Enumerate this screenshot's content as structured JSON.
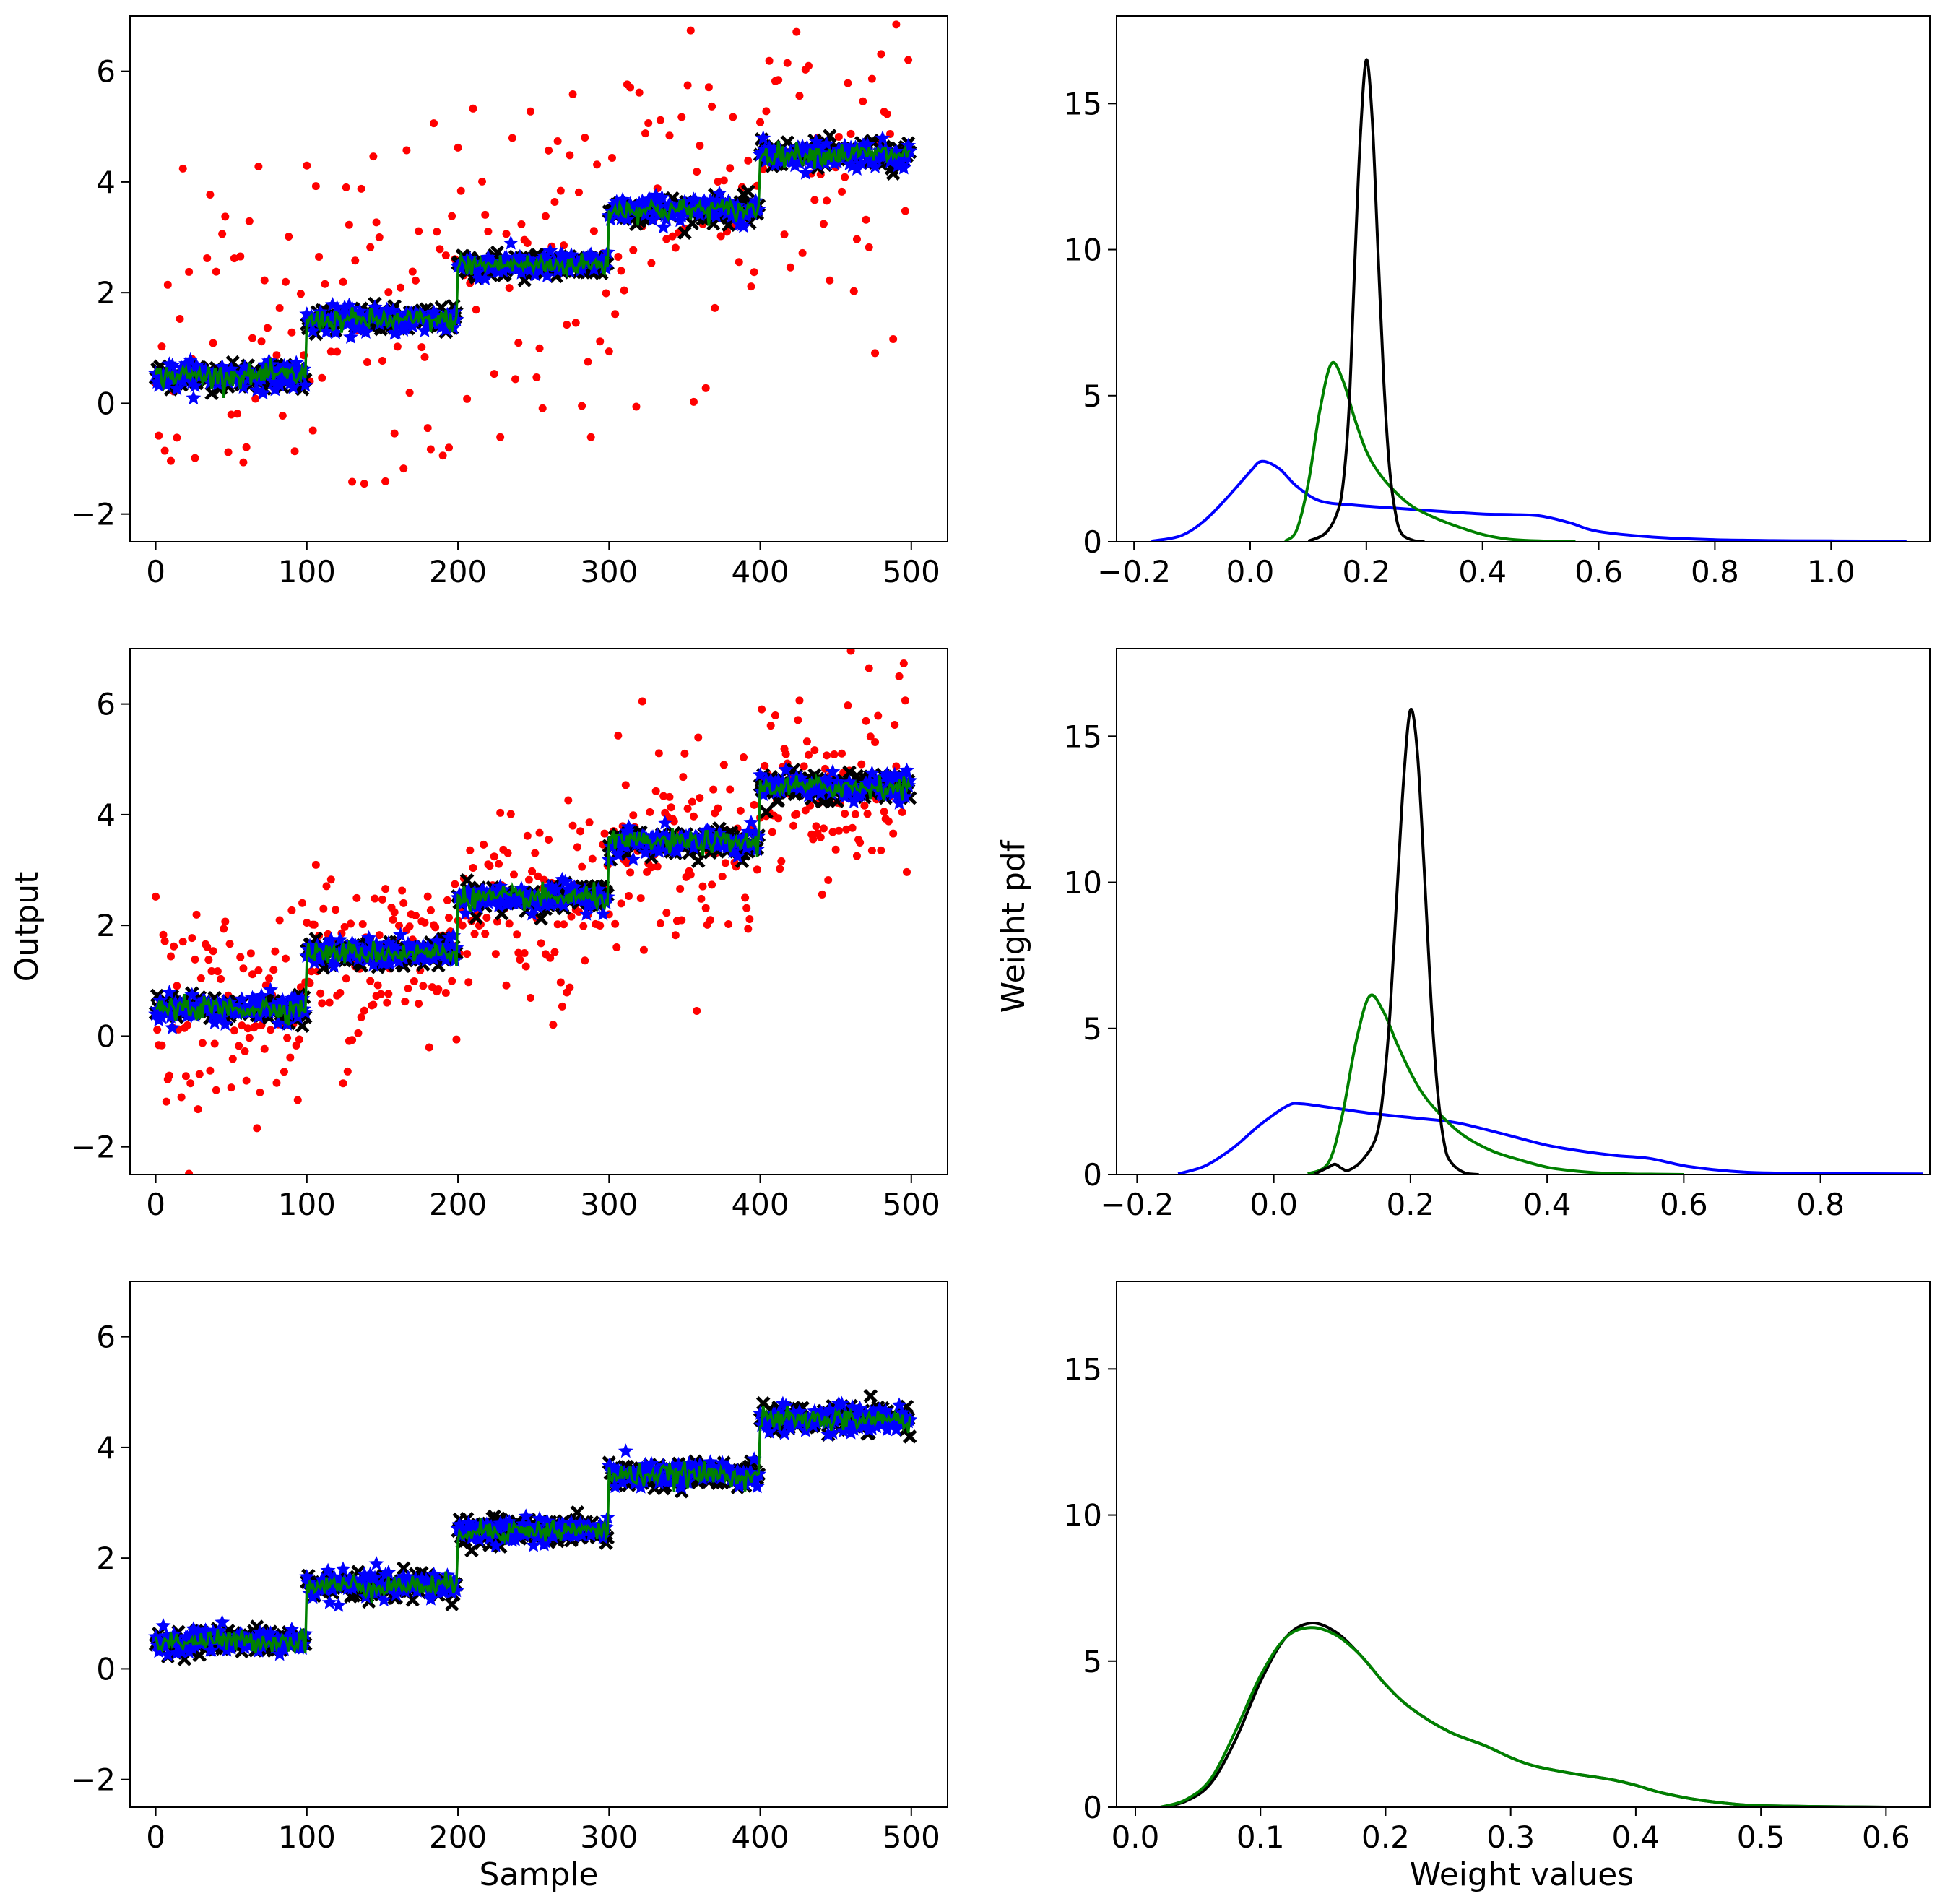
{
  "figure": {
    "left_ylabel": "Output",
    "right_ylabel": "Weight pdf",
    "left_xlabel": "Sample",
    "right_xlabel": "Weight values"
  },
  "colors": {
    "observed": "#ff0000",
    "blue_series": "#0000ff",
    "black_series": "#000000",
    "green_series": "#008000"
  },
  "chart_data": [
    {
      "type": "scatter",
      "panel": "row1-left",
      "xlim": [
        -17,
        524
      ],
      "ylim": [
        -2.5,
        7.0
      ],
      "xticks": [
        0,
        100,
        200,
        300,
        400,
        500
      ],
      "yticks": [
        -2,
        0,
        2,
        4,
        6
      ],
      "step_levels": [
        {
          "x_start": 0,
          "x_end": 100,
          "level": 0.5
        },
        {
          "x_start": 100,
          "x_end": 200,
          "level": 1.5
        },
        {
          "x_start": 200,
          "x_end": 300,
          "level": 2.5
        },
        {
          "x_start": 300,
          "x_end": 400,
          "level": 3.5
        },
        {
          "x_start": 400,
          "x_end": 500,
          "level": 4.5
        }
      ],
      "noise": {
        "band": 0.2,
        "red_spread": 1.6,
        "red_every": 2
      },
      "series": [
        {
          "color_key": "observed",
          "marker": "dot"
        },
        {
          "color_key": "black_series",
          "marker": "cross"
        },
        {
          "color_key": "blue_series",
          "marker": "star"
        },
        {
          "color_key": "green_series",
          "marker": "line"
        }
      ]
    },
    {
      "type": "line",
      "panel": "row1-right",
      "xlim": [
        -0.23,
        1.17
      ],
      "ylim": [
        0,
        18
      ],
      "xticks": [
        -0.2,
        0.0,
        0.2,
        0.4,
        0.6,
        0.8,
        1.0
      ],
      "yticks": [
        0,
        5,
        10,
        15
      ],
      "series": [
        {
          "color_key": "blue_series",
          "x": [
            -0.17,
            -0.12,
            -0.08,
            -0.04,
            0.0,
            0.02,
            0.05,
            0.08,
            0.12,
            0.18,
            0.25,
            0.32,
            0.4,
            0.45,
            0.5,
            0.55,
            0.6,
            0.7,
            0.8,
            0.9,
            1.0,
            1.13
          ],
          "y": [
            0.02,
            0.2,
            0.7,
            1.5,
            2.4,
            2.75,
            2.5,
            1.9,
            1.4,
            1.25,
            1.15,
            1.05,
            0.95,
            0.93,
            0.88,
            0.65,
            0.35,
            0.15,
            0.07,
            0.04,
            0.03,
            0.02
          ]
        },
        {
          "color_key": "green_series",
          "x": [
            0.06,
            0.08,
            0.1,
            0.12,
            0.14,
            0.16,
            0.18,
            0.2,
            0.22,
            0.25,
            0.28,
            0.32,
            0.36,
            0.4,
            0.44,
            0.48,
            0.52,
            0.56
          ],
          "y": [
            0.02,
            0.4,
            2.0,
            4.5,
            6.1,
            5.5,
            4.2,
            3.1,
            2.4,
            1.7,
            1.2,
            0.8,
            0.5,
            0.25,
            0.1,
            0.04,
            0.02,
            0.0
          ]
        },
        {
          "color_key": "black_series",
          "x": [
            0.1,
            0.13,
            0.15,
            0.16,
            0.17,
            0.18,
            0.19,
            0.2,
            0.21,
            0.22,
            0.23,
            0.24,
            0.25,
            0.26,
            0.28,
            0.3
          ],
          "y": [
            0.02,
            0.3,
            1.0,
            2.0,
            4.5,
            9.5,
            14.0,
            16.5,
            14.5,
            10.0,
            5.5,
            2.5,
            1.0,
            0.3,
            0.05,
            0.0
          ]
        }
      ]
    },
    {
      "type": "scatter",
      "panel": "row2-left",
      "xlim": [
        -17,
        524
      ],
      "ylim": [
        -2.5,
        7.0
      ],
      "xticks": [
        0,
        100,
        200,
        300,
        400,
        500
      ],
      "yticks": [
        -2,
        0,
        2,
        4,
        6
      ],
      "step_levels": [
        {
          "x_start": 0,
          "x_end": 100,
          "level": 0.5
        },
        {
          "x_start": 100,
          "x_end": 200,
          "level": 1.5
        },
        {
          "x_start": 200,
          "x_end": 300,
          "level": 2.5
        },
        {
          "x_start": 300,
          "x_end": 400,
          "level": 3.5
        },
        {
          "x_start": 400,
          "x_end": 500,
          "level": 4.5
        }
      ],
      "noise": {
        "band": 0.2,
        "red_spread": 0.9,
        "red_every": 1
      },
      "series": [
        {
          "color_key": "observed",
          "marker": "dot"
        },
        {
          "color_key": "black_series",
          "marker": "cross"
        },
        {
          "color_key": "blue_series",
          "marker": "star"
        },
        {
          "color_key": "green_series",
          "marker": "line"
        }
      ]
    },
    {
      "type": "line",
      "panel": "row2-right",
      "xlim": [
        -0.23,
        0.96
      ],
      "ylim": [
        0,
        18
      ],
      "xticks": [
        -0.2,
        0.0,
        0.2,
        0.4,
        0.6,
        0.8
      ],
      "yticks": [
        0,
        5,
        10,
        15
      ],
      "series": [
        {
          "color_key": "blue_series",
          "x": [
            -0.14,
            -0.1,
            -0.06,
            -0.02,
            0.02,
            0.04,
            0.08,
            0.14,
            0.2,
            0.26,
            0.3,
            0.35,
            0.4,
            0.45,
            0.5,
            0.55,
            0.6,
            0.65,
            0.7,
            0.8,
            0.95
          ],
          "y": [
            0.02,
            0.3,
            0.9,
            1.7,
            2.35,
            2.42,
            2.3,
            2.1,
            1.95,
            1.8,
            1.6,
            1.3,
            1.0,
            0.8,
            0.65,
            0.55,
            0.3,
            0.15,
            0.07,
            0.03,
            0.02
          ]
        },
        {
          "color_key": "green_series",
          "x": [
            0.05,
            0.08,
            0.1,
            0.12,
            0.14,
            0.16,
            0.18,
            0.2,
            0.22,
            0.25,
            0.28,
            0.32,
            0.36,
            0.4,
            0.44,
            0.48,
            0.52,
            0.56,
            0.6
          ],
          "y": [
            0.02,
            0.4,
            2.0,
            4.5,
            6.1,
            5.6,
            4.5,
            3.5,
            2.7,
            1.9,
            1.3,
            0.8,
            0.5,
            0.25,
            0.12,
            0.05,
            0.02,
            0.01,
            0.0
          ]
        },
        {
          "color_key": "black_series",
          "x": [
            0.06,
            0.08,
            0.09,
            0.1,
            0.11,
            0.13,
            0.15,
            0.16,
            0.17,
            0.18,
            0.19,
            0.2,
            0.21,
            0.22,
            0.23,
            0.24,
            0.25,
            0.26,
            0.28,
            0.3
          ],
          "y": [
            0.02,
            0.25,
            0.35,
            0.2,
            0.15,
            0.5,
            1.3,
            2.8,
            5.5,
            9.5,
            13.5,
            15.9,
            14.5,
            10.5,
            6.0,
            2.8,
            1.0,
            0.4,
            0.05,
            0.0
          ]
        }
      ]
    },
    {
      "type": "scatter",
      "panel": "row3-left",
      "xlim": [
        -17,
        524
      ],
      "ylim": [
        -2.5,
        7.0
      ],
      "xticks": [
        0,
        100,
        200,
        300,
        400,
        500
      ],
      "yticks": [
        -2,
        0,
        2,
        4,
        6
      ],
      "step_levels": [
        {
          "x_start": 0,
          "x_end": 100,
          "level": 0.5
        },
        {
          "x_start": 100,
          "x_end": 200,
          "level": 1.5
        },
        {
          "x_start": 200,
          "x_end": 300,
          "level": 2.5
        },
        {
          "x_start": 300,
          "x_end": 400,
          "level": 3.5
        },
        {
          "x_start": 400,
          "x_end": 500,
          "level": 4.5
        }
      ],
      "noise": {
        "band": 0.2,
        "red_spread": 0.0,
        "red_every": 0
      },
      "series": [
        {
          "color_key": "black_series",
          "marker": "cross"
        },
        {
          "color_key": "blue_series",
          "marker": "star"
        },
        {
          "color_key": "green_series",
          "marker": "line"
        }
      ]
    },
    {
      "type": "line",
      "panel": "row3-right",
      "xlim": [
        -0.015,
        0.635
      ],
      "ylim": [
        0,
        18
      ],
      "xticks": [
        0.0,
        0.1,
        0.2,
        0.3,
        0.4,
        0.5,
        0.6
      ],
      "yticks": [
        0,
        5,
        10,
        15
      ],
      "series": [
        {
          "color_key": "black_series",
          "x": [
            0.02,
            0.04,
            0.06,
            0.08,
            0.1,
            0.12,
            0.14,
            0.16,
            0.18,
            0.2,
            0.22,
            0.25,
            0.28,
            0.3,
            0.32,
            0.35,
            0.38,
            0.4,
            0.42,
            0.45,
            0.48,
            0.5,
            0.55,
            0.6
          ],
          "y": [
            0.0,
            0.2,
            0.8,
            2.3,
            4.3,
            5.8,
            6.3,
            6.0,
            5.2,
            4.2,
            3.4,
            2.6,
            2.1,
            1.7,
            1.4,
            1.15,
            0.95,
            0.75,
            0.5,
            0.25,
            0.1,
            0.05,
            0.02,
            0.0
          ]
        },
        {
          "color_key": "green_series",
          "x": [
            0.02,
            0.04,
            0.06,
            0.08,
            0.1,
            0.12,
            0.14,
            0.16,
            0.18,
            0.2,
            0.22,
            0.25,
            0.28,
            0.3,
            0.32,
            0.35,
            0.38,
            0.4,
            0.42,
            0.45,
            0.48,
            0.5,
            0.55,
            0.6
          ],
          "y": [
            0.0,
            0.25,
            0.95,
            2.6,
            4.5,
            5.8,
            6.15,
            5.9,
            5.2,
            4.2,
            3.4,
            2.6,
            2.1,
            1.7,
            1.4,
            1.15,
            0.95,
            0.75,
            0.5,
            0.25,
            0.1,
            0.05,
            0.02,
            0.0
          ]
        }
      ]
    }
  ]
}
